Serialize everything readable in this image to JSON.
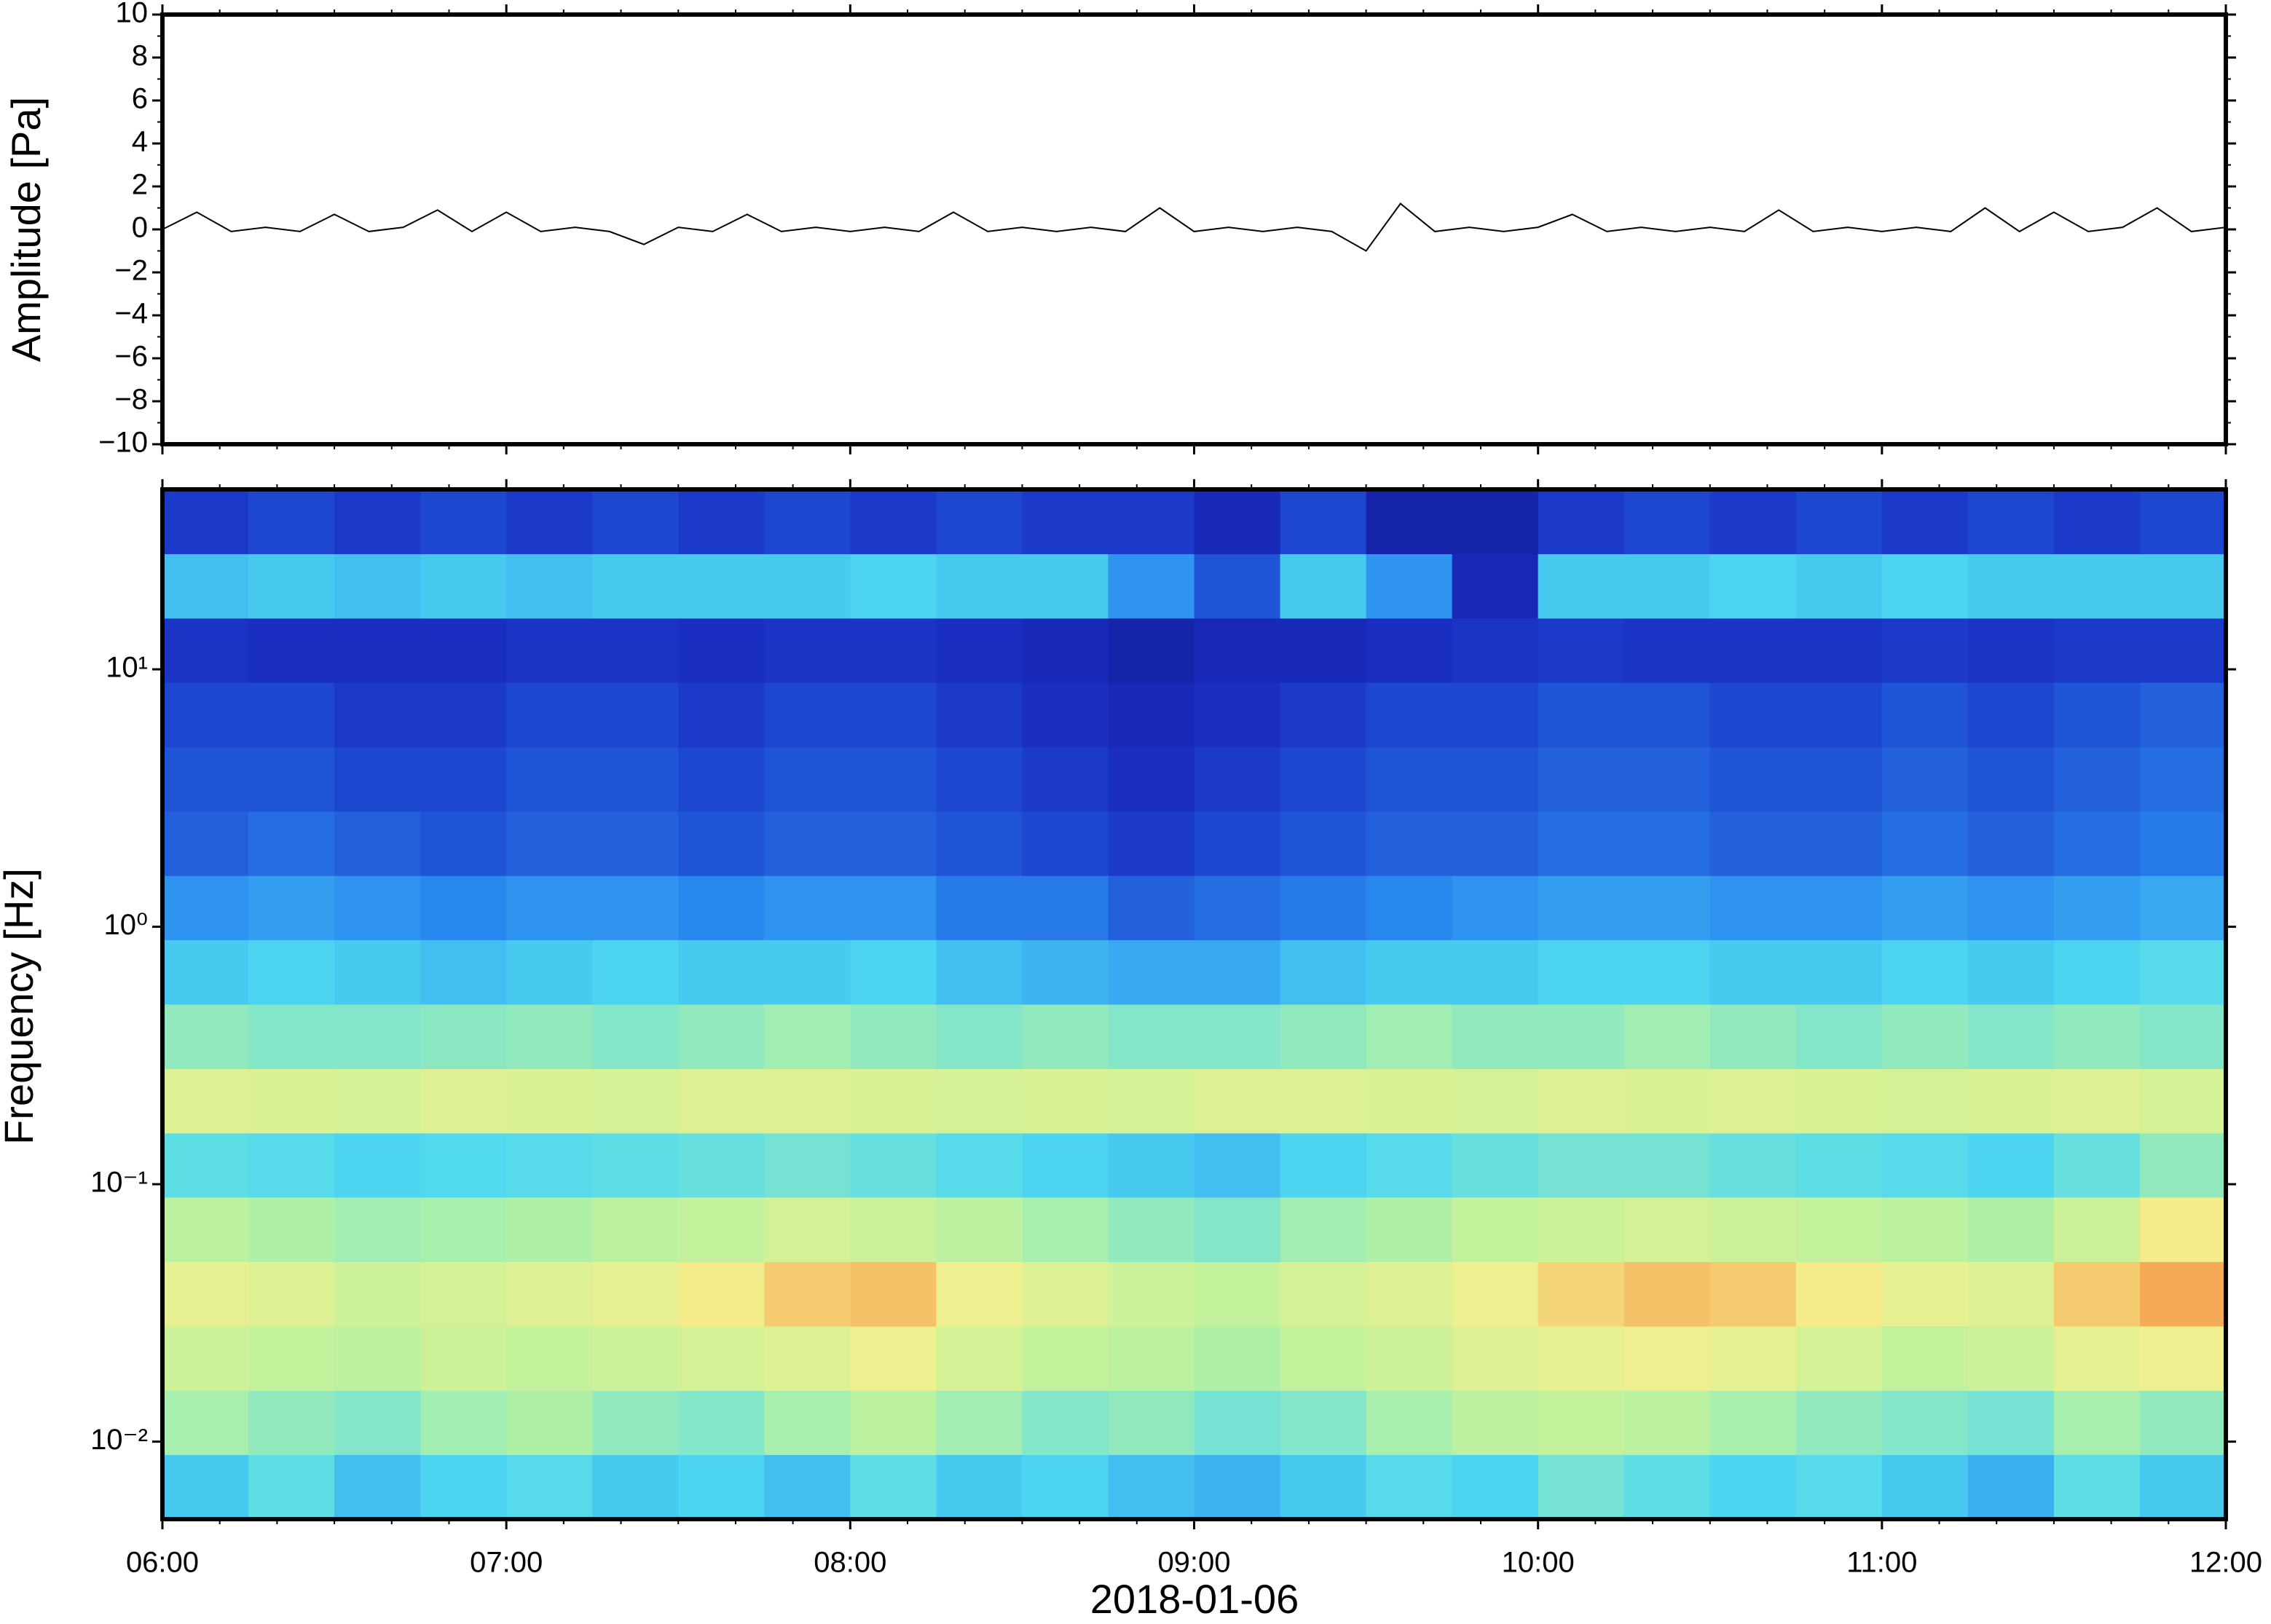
{
  "chart_data": [
    {
      "type": "line",
      "ylabel": "Amplitude [Pa]",
      "xlim": [
        6,
        12
      ],
      "xticks": [
        6,
        7,
        8,
        9,
        10,
        11,
        12
      ],
      "x_minor_per_major": 6,
      "ylim": [
        -10,
        10
      ],
      "yticks": [
        {
          "value": -10,
          "label": "−10"
        },
        {
          "value": -8,
          "label": "−8"
        },
        {
          "value": -6,
          "label": "−6"
        },
        {
          "value": -4,
          "label": "−4"
        },
        {
          "value": -2,
          "label": "−2"
        },
        0,
        2,
        4,
        6,
        8,
        10
      ],
      "y_minor_per_major": 2,
      "x": [
        6.0,
        6.1,
        6.2,
        6.3,
        6.4,
        6.5,
        6.6,
        6.7,
        6.8,
        6.9,
        7.0,
        7.1,
        7.2,
        7.3,
        7.4,
        7.5,
        7.6,
        7.7,
        7.8,
        7.9,
        8.0,
        8.1,
        8.2,
        8.3,
        8.4,
        8.5,
        8.6,
        8.7,
        8.8,
        8.9,
        9.0,
        9.1,
        9.2,
        9.3,
        9.4,
        9.5,
        9.6,
        9.7,
        9.8,
        9.9,
        10.0,
        10.1,
        10.2,
        10.3,
        10.4,
        10.5,
        10.6,
        10.7,
        10.8,
        10.9,
        11.0,
        11.1,
        11.2,
        11.3,
        11.4,
        11.5,
        11.6,
        11.7,
        11.8,
        11.9,
        12.0
      ],
      "series": [
        {
          "color": "#000000",
          "values": [
            0,
            0.8,
            -0.1,
            0.1,
            -0.1,
            0.7,
            -0.1,
            0.1,
            0.9,
            -0.1,
            0.8,
            -0.1,
            0.1,
            -0.1,
            -0.7,
            0.1,
            -0.1,
            0.7,
            -0.1,
            0.1,
            -0.1,
            0.1,
            -0.1,
            0.8,
            -0.1,
            0.1,
            -0.1,
            0.1,
            -0.1,
            1.0,
            -0.1,
            0.1,
            -0.1,
            0.1,
            -0.1,
            -1.0,
            1.2,
            -0.1,
            0.1,
            -0.1,
            0.1,
            0.7,
            -0.1,
            0.1,
            -0.1,
            0.1,
            -0.1,
            0.9,
            -0.1,
            0.1,
            -0.1,
            0.1,
            -0.1,
            1.0,
            -0.1,
            0.8,
            -0.1,
            0.1,
            1.0,
            -0.1,
            0.1
          ]
        }
      ]
    },
    {
      "type": "heatmap",
      "ylabel": "Frequency [Hz]",
      "xlabel": "2018-01-06",
      "xlim": [
        6,
        12
      ],
      "xticks": [
        {
          "value": 6,
          "label": "06:00"
        },
        {
          "value": 7,
          "label": "07:00"
        },
        {
          "value": 8,
          "label": "08:00"
        },
        {
          "value": 9,
          "label": "09:00"
        },
        {
          "value": 10,
          "label": "10:00"
        },
        {
          "value": 11,
          "label": "11:00"
        },
        {
          "value": 12,
          "label": "12:00"
        }
      ],
      "x_minor_per_major": 6,
      "ylim": [
        0.005,
        50
      ],
      "log_y": true,
      "yticks": [
        {
          "value": 0.01,
          "label": "10⁻²"
        },
        {
          "value": 0.1,
          "label": "10⁻¹"
        },
        {
          "value": 1,
          "label": "10⁰"
        },
        {
          "value": 10,
          "label": "10¹"
        }
      ],
      "x": [
        6,
        6.25,
        6.5,
        6.75,
        7,
        7.25,
        7.5,
        7.75,
        8,
        8.25,
        8.5,
        8.75,
        9,
        9.25,
        9.5,
        9.75,
        10,
        10.25,
        10.5,
        10.75,
        11,
        11.25,
        11.5,
        11.75,
        12
      ],
      "y": [
        0.005,
        0.0089,
        0.0158,
        0.0281,
        0.05,
        0.089,
        0.158,
        0.281,
        0.5,
        0.89,
        1.58,
        2.81,
        5,
        8.9,
        15.8,
        28.1,
        50
      ],
      "zlim": [
        0,
        100
      ],
      "colormap": [
        "#0a0a6a",
        "#1a2fc4",
        "#2a8cf0",
        "#4fd9f0",
        "#b8f2a0",
        "#f4ef8c",
        "#f5a24e",
        "#d8302c"
      ],
      "values": [
        [
          40,
          45,
          38,
          42,
          44,
          40,
          42,
          38,
          45,
          40,
          42,
          38,
          36,
          40,
          44,
          42,
          48,
          45,
          42,
          44,
          40,
          35,
          45,
          40
        ],
        [
          55,
          52,
          50,
          54,
          56,
          52,
          50,
          55,
          58,
          54,
          50,
          52,
          48,
          50,
          55,
          58,
          60,
          58,
          55,
          52,
          50,
          48,
          55,
          52
        ],
        [
          62,
          60,
          58,
          62,
          60,
          62,
          64,
          66,
          70,
          64,
          60,
          58,
          56,
          60,
          62,
          66,
          68,
          70,
          68,
          64,
          60,
          62,
          68,
          70
        ],
        [
          68,
          66,
          62,
          64,
          66,
          68,
          72,
          78,
          80,
          70,
          66,
          62,
          60,
          64,
          66,
          70,
          76,
          80,
          78,
          72,
          68,
          66,
          78,
          84
        ],
        [
          58,
          56,
          54,
          55,
          56,
          58,
          60,
          64,
          62,
          58,
          55,
          52,
          50,
          54,
          56,
          60,
          62,
          64,
          62,
          60,
          58,
          56,
          62,
          72
        ],
        [
          45,
          44,
          42,
          43,
          44,
          45,
          46,
          48,
          46,
          44,
          42,
          40,
          38,
          42,
          44,
          46,
          48,
          48,
          46,
          45,
          44,
          42,
          46,
          52
        ],
        [
          66,
          65,
          64,
          66,
          65,
          64,
          66,
          66,
          65,
          64,
          65,
          64,
          66,
          66,
          65,
          64,
          66,
          65,
          66,
          65,
          64,
          65,
          66,
          64
        ],
        [
          52,
          50,
          50,
          51,
          52,
          50,
          52,
          54,
          52,
          50,
          52,
          50,
          50,
          52,
          54,
          52,
          52,
          54,
          52,
          50,
          52,
          50,
          52,
          50
        ],
        [
          40,
          42,
          40,
          38,
          40,
          42,
          40,
          40,
          42,
          38,
          36,
          34,
          34,
          38,
          40,
          40,
          42,
          42,
          40,
          40,
          42,
          40,
          42,
          44
        ],
        [
          30,
          32,
          30,
          28,
          30,
          30,
          28,
          30,
          30,
          26,
          26,
          22,
          24,
          26,
          28,
          30,
          32,
          32,
          30,
          30,
          32,
          30,
          32,
          34
        ],
        [
          22,
          24,
          22,
          20,
          22,
          22,
          20,
          22,
          22,
          20,
          18,
          16,
          18,
          20,
          22,
          22,
          24,
          24,
          22,
          22,
          24,
          22,
          24,
          26
        ],
        [
          20,
          20,
          18,
          18,
          20,
          20,
          18,
          20,
          20,
          18,
          16,
          14,
          16,
          18,
          20,
          20,
          22,
          22,
          20,
          20,
          22,
          20,
          22,
          24
        ],
        [
          18,
          18,
          16,
          16,
          18,
          18,
          16,
          18,
          18,
          16,
          14,
          12,
          14,
          16,
          18,
          18,
          20,
          20,
          18,
          18,
          20,
          18,
          20,
          22
        ],
        [
          15,
          14,
          14,
          14,
          15,
          15,
          14,
          15,
          15,
          14,
          12,
          10,
          12,
          12,
          14,
          15,
          16,
          15,
          15,
          15,
          16,
          15,
          16,
          16
        ],
        [
          38,
          40,
          38,
          40,
          38,
          40,
          40,
          40,
          42,
          40,
          40,
          30,
          20,
          40,
          30,
          12,
          40,
          40,
          42,
          40,
          42,
          40,
          40,
          40
        ],
        [
          16,
          18,
          16,
          18,
          16,
          18,
          16,
          18,
          16,
          18,
          16,
          16,
          12,
          18,
          10,
          10,
          16,
          18,
          16,
          18,
          16,
          18,
          16,
          18
        ]
      ]
    }
  ]
}
